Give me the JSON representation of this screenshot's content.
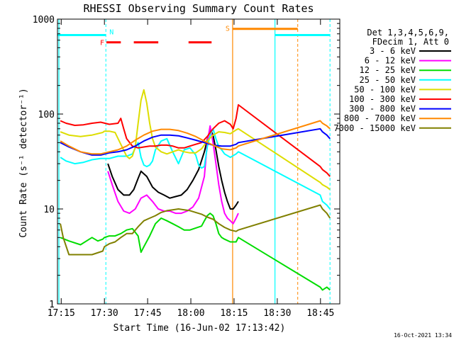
{
  "chart_data": {
    "type": "line",
    "title": "RHESSI Observing Summary Count Rates",
    "xlabel": "Start Time (16-Jun-02 17:13:42)",
    "ylabel": "Count Rate (s⁻¹ detector⁻¹)",
    "yscale": "log",
    "ylim": [
      1,
      1000
    ],
    "xlim_minutes": [
      0,
      98
    ],
    "x_tick_labels": [
      "17:15",
      "17:30",
      "17:45",
      "18:00",
      "18:15",
      "18:30",
      "18:45"
    ],
    "x_tick_minutes": [
      1.3,
      16.3,
      31.3,
      46.3,
      61.3,
      76.3,
      91.3
    ],
    "y_tick_labels": [
      "1",
      "10",
      "100",
      "1000"
    ],
    "y_tick_values": [
      1,
      10,
      100,
      1000
    ],
    "legend_header": [
      "Det 1,3,4,5,6,9,",
      "FDecim 1, Att 0"
    ],
    "legend_position": "right",
    "footer_date": "16-Oct-2021 13:34",
    "series": [
      {
        "name": "3 - 6 keV",
        "color": "#000000",
        "x": [
          0,
          8,
          15.7,
          16.3,
          17.5,
          19,
          21,
          23,
          25,
          26.5,
          28,
          29,
          31,
          33,
          35,
          37,
          39,
          41,
          43,
          45,
          47,
          49,
          51,
          53,
          54,
          55,
          56,
          57,
          58,
          59,
          60,
          61,
          62,
          62.8,
          87.6,
          89,
          91,
          93,
          94.6
        ],
        "y": [
          null,
          null,
          null,
          null,
          30,
          22,
          16,
          14,
          14,
          16,
          21,
          25,
          22,
          17,
          15,
          14,
          13,
          13.5,
          14,
          16,
          20,
          26,
          40,
          70,
          60,
          42,
          28,
          20,
          15,
          12,
          10,
          10,
          11,
          12,
          null,
          null,
          null,
          null,
          null
        ]
      },
      {
        "name": "6 - 12 keV",
        "color": "#ff00ff",
        "x": [
          0,
          16.3,
          17.5,
          19,
          21,
          23,
          25,
          27,
          29,
          31,
          33,
          35,
          37,
          39,
          41,
          43,
          45,
          47,
          49,
          51,
          52,
          53,
          54,
          55,
          56,
          57,
          58,
          59,
          60,
          61,
          62,
          62.8
        ],
        "y": [
          null,
          null,
          25,
          18,
          12,
          9.5,
          9,
          10,
          13,
          14,
          12,
          10,
          9.5,
          9.5,
          9,
          9,
          9.5,
          10.5,
          13,
          22,
          50,
          75,
          50,
          30,
          18,
          12,
          9,
          8,
          7.5,
          7,
          8,
          9
        ]
      },
      {
        "name": "12 - 25 keV",
        "color": "#00dd00",
        "x": [
          1,
          4,
          8,
          12,
          14,
          15.7,
          16.3,
          18,
          20,
          22,
          24,
          26,
          28,
          29,
          30,
          32,
          34,
          36,
          38,
          40,
          42,
          44,
          46,
          48,
          50,
          51,
          52,
          53,
          54,
          55,
          56,
          57,
          58,
          60,
          62,
          62.8,
          91.2,
          92,
          93.5,
          94.6
        ],
        "y": [
          5,
          4.6,
          4.2,
          5,
          4.6,
          4.8,
          5,
          5.2,
          5.2,
          5.5,
          6,
          6.2,
          5.2,
          3.5,
          4,
          5.2,
          7,
          8,
          7.5,
          7,
          6.5,
          6,
          6,
          6.3,
          6.6,
          7.5,
          8.5,
          9,
          8.5,
          7,
          5.5,
          5,
          4.8,
          4.5,
          4.5,
          5,
          1.5,
          1.4,
          1.5,
          1.4
        ]
      },
      {
        "name": "25 - 50 keV",
        "color": "#00ffff",
        "x": [
          1,
          3,
          6,
          9,
          12,
          15,
          18,
          21,
          24,
          26,
          28,
          29,
          30,
          31,
          32,
          33,
          34,
          36,
          38,
          40,
          42,
          44,
          46,
          48,
          49,
          50,
          51,
          52,
          53,
          54,
          55,
          56,
          57,
          58,
          60,
          62,
          62.8,
          91.2,
          92,
          93.5,
          94.6
        ],
        "y": [
          35,
          32,
          30,
          31,
          33,
          34,
          34,
          36,
          36,
          38,
          50,
          35,
          29,
          28,
          29,
          32,
          42,
          52,
          55,
          40,
          30,
          42,
          44,
          37,
          29,
          27,
          28,
          45,
          60,
          70,
          55,
          45,
          42,
          38,
          35,
          38,
          40,
          14,
          12,
          11,
          10
        ]
      },
      {
        "name": "50 - 100 keV",
        "color": "#dddd00",
        "x": [
          1,
          4,
          8,
          12,
          15.7,
          16.3,
          18,
          20,
          22,
          24,
          25,
          26,
          27,
          28,
          29,
          30,
          31,
          32,
          33,
          34,
          36,
          38,
          40,
          42,
          44,
          46,
          48,
          50,
          52,
          54,
          56,
          58,
          60,
          62,
          62.8,
          91.2,
          92,
          93.5,
          94.6
        ],
        "y": [
          65,
          60,
          58,
          60,
          64,
          66,
          66,
          64,
          48,
          36,
          34,
          36,
          45,
          80,
          140,
          180,
          130,
          80,
          55,
          45,
          40,
          38,
          40,
          42,
          40,
          39,
          39,
          43,
          52,
          60,
          65,
          64,
          62,
          68,
          70,
          19,
          18,
          17,
          16
        ]
      },
      {
        "name": "100 - 300 keV",
        "color": "#ff0000",
        "x": [
          1,
          3,
          6,
          9,
          12,
          15,
          18,
          21,
          22,
          23,
          24,
          26,
          28,
          30,
          32,
          34,
          36,
          38,
          40,
          42,
          44,
          46,
          48,
          50,
          52,
          54,
          56,
          58,
          60,
          61,
          62,
          62.8,
          91.2,
          92,
          93.5,
          94.6
        ],
        "y": [
          85,
          80,
          76,
          77,
          80,
          82,
          78,
          80,
          90,
          70,
          55,
          46,
          44,
          45,
          46,
          46,
          47,
          47,
          46,
          44,
          44,
          46,
          48,
          50,
          58,
          70,
          80,
          85,
          78,
          70,
          90,
          125,
          28,
          26,
          24,
          22
        ]
      },
      {
        "name": "300 - 800 keV",
        "color": "#0000ff",
        "x": [
          1,
          4,
          8,
          12,
          15,
          18,
          21,
          24,
          27,
          30,
          33,
          36,
          39,
          42,
          45,
          48,
          51,
          54,
          57,
          60,
          62,
          62.8,
          91.2,
          92,
          93.5,
          94.6
        ],
        "y": [
          50,
          45,
          40,
          37,
          37,
          39,
          40,
          42,
          46,
          52,
          57,
          60,
          60,
          59,
          56,
          53,
          50,
          47,
          46,
          46,
          48,
          50,
          70,
          65,
          60,
          55
        ]
      },
      {
        "name": "800 - 7000 keV",
        "color": "#ff8800",
        "x": [
          1,
          4,
          8,
          12,
          15,
          18,
          21,
          24,
          27,
          30,
          33,
          36,
          39,
          42,
          45,
          48,
          51,
          54,
          57,
          60,
          62,
          62.8,
          91.2,
          92,
          93.5,
          94.6
        ],
        "y": [
          52,
          46,
          40,
          38,
          38,
          40,
          42,
          46,
          53,
          60,
          66,
          69,
          69,
          67,
          63,
          58,
          52,
          47,
          43,
          42,
          44,
          46,
          85,
          80,
          75,
          70
        ]
      },
      {
        "name": "7000 - 15000 keV",
        "color": "#808000",
        "x": [
          1,
          2,
          4,
          8,
          12,
          15.7,
          16.3,
          18,
          20,
          22,
          24,
          26,
          28,
          30,
          32,
          34,
          36,
          38,
          40,
          42,
          44,
          46,
          48,
          50,
          52,
          54,
          56,
          58,
          60,
          62,
          62.8,
          91.2,
          92,
          93.5,
          94.6
        ],
        "y": [
          7,
          5,
          3.3,
          3.3,
          3.3,
          3.6,
          4,
          4.3,
          4.5,
          5,
          5.5,
          5.5,
          6.5,
          7.5,
          8,
          8.5,
          9.2,
          9.6,
          9.8,
          10,
          9.8,
          9.6,
          9.2,
          8.8,
          8.2,
          7.8,
          7,
          6.4,
          6,
          5.8,
          6,
          11,
          10,
          9,
          8
        ]
      }
    ],
    "annotations": {
      "night_label": "N",
      "saa_label": "S",
      "flare_label": "F",
      "night_color": "#00ffff",
      "saa_color": "#ff8800",
      "flare_color": "#ff0000",
      "night_segments": [
        [
          0,
          16.8
        ],
        [
          75.5,
          94.6
        ]
      ],
      "saa_segment": [
        60.8,
        83.4
      ],
      "flare_segments": [
        [
          17,
          22
        ],
        [
          26.5,
          35
        ],
        [
          45.5,
          53.5
        ]
      ],
      "level_night": 680,
      "level_saa": 790,
      "level_flare": 570,
      "night_lines_solid": [
        0.5,
        75.5
      ],
      "night_lines_dashed": [
        16.8,
        94.6
      ],
      "saa_lines_solid": [
        60.8
      ],
      "saa_lines_dashed": [
        83.4
      ]
    }
  }
}
